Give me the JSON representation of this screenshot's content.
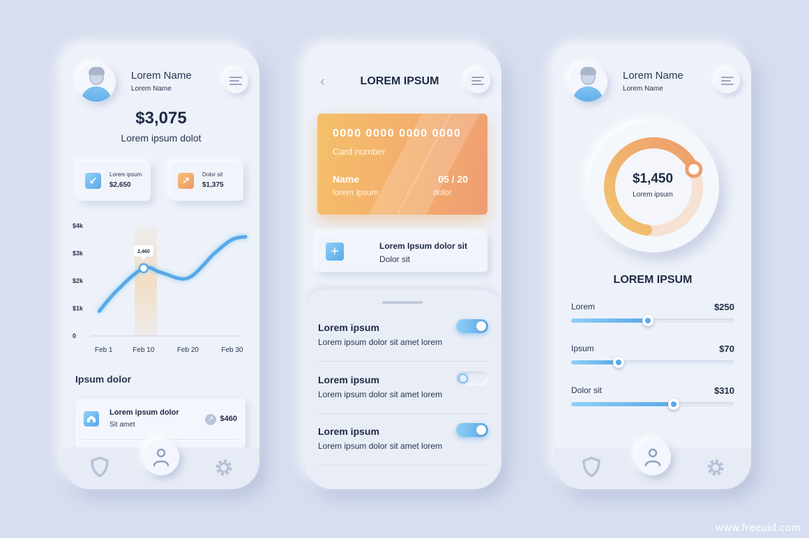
{
  "phone1": {
    "user": {
      "name": "Lorem Name",
      "sub": "Lorem Name"
    },
    "balance": "$3,075",
    "balance_sub": "Lorem ipsum dolot",
    "mini_cards": [
      {
        "label": "Lorem ipsum",
        "value": "$2,650",
        "icon": "arrow-down-left-icon"
      },
      {
        "label": "Dolor sit",
        "value": "$1,375",
        "icon": "arrow-up-right-icon"
      }
    ],
    "section_title": "Ipsum dolor",
    "transaction": {
      "title": "Lorem ipsum dolor",
      "sub": "Sit amet",
      "amount": "$460",
      "icon": "home-icon"
    }
  },
  "chart_data": {
    "type": "line",
    "y_ticks": [
      "$4k",
      "$3k",
      "$2k",
      "$1k",
      "0"
    ],
    "y_tick_values": [
      4000,
      3000,
      2000,
      1000,
      0
    ],
    "x_ticks": [
      "Feb 1",
      "Feb 10",
      "Feb 20",
      "Feb 30"
    ],
    "x_tick_values": [
      1,
      10,
      20,
      30
    ],
    "ylim": [
      0,
      4000
    ],
    "xlim": [
      -1,
      33
    ],
    "x": [
      0,
      4,
      10,
      14,
      20,
      26,
      30,
      33
    ],
    "y": [
      900,
      1650,
      2460,
      2300,
      2100,
      3000,
      3500,
      3600
    ],
    "highlight": {
      "x": 10,
      "y": 2460,
      "label": "2,460"
    },
    "highlight_band": [
      8,
      13
    ],
    "grid": false,
    "colors": {
      "line": "#5aa8e6",
      "band": "#f3d9b8"
    }
  },
  "phone2": {
    "title": "LOREM IPSUM",
    "card": {
      "number": "0000 0000 0000 0000",
      "number_label": "Card number",
      "name": "Name",
      "name_sub": "lorem ipsum",
      "exp": "05 / 20",
      "exp_sub": "dolor"
    },
    "add": {
      "title": "Lorem Ipsum dolor sit",
      "sub": "Dolor sit"
    },
    "settings": [
      {
        "title": "Lorem ipsum",
        "desc": "Lorem ipsum dolor sit amet lorem",
        "on": true
      },
      {
        "title": "Lorem ipsum",
        "desc": "Lorem ipsum dolor sit amet lorem",
        "on": false
      },
      {
        "title": "Lorem ipsum",
        "desc": "Lorem ipsum dolor sit amet lorem",
        "on": true
      }
    ]
  },
  "phone3": {
    "user": {
      "name": "Lorem Name",
      "sub": "Lorem Name"
    },
    "donut": {
      "value": "$1,450",
      "sub": "Lorem ipsum",
      "fraction": 0.66
    },
    "title": "LOREM IPSUM",
    "sliders": [
      {
        "label": "Lorem",
        "amount": "$250",
        "fraction": 0.47
      },
      {
        "label": "Ipsum",
        "amount": "$70",
        "fraction": 0.29
      },
      {
        "label": "Dolor sit",
        "amount": "$310",
        "fraction": 0.63
      }
    ]
  },
  "colors": {
    "accent_blue": "#5aa8e6",
    "accent_orange": "#ee9a62",
    "background": "#d7deef"
  },
  "watermark": "www.freeuid.com"
}
